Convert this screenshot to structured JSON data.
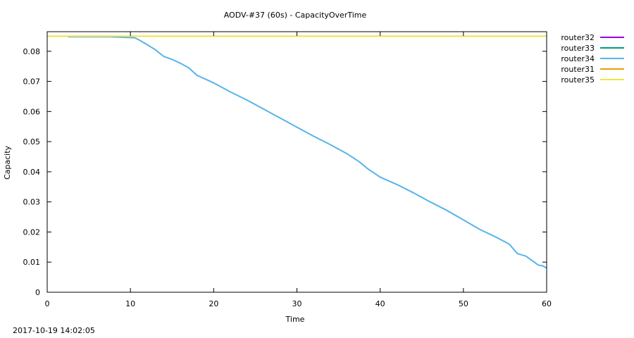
{
  "timestamp": "2017-10-19 14:02:05",
  "chart_data": {
    "type": "line",
    "title": "AODV-#37 (60s) - CapacityOverTime",
    "xlabel": "Time",
    "ylabel": "Capacity",
    "xlim": [
      0,
      60
    ],
    "ylim": [
      0,
      0.0865
    ],
    "xticks": [
      {
        "value": 0,
        "label": "0"
      },
      {
        "value": 10,
        "label": "10"
      },
      {
        "value": 20,
        "label": "20"
      },
      {
        "value": 30,
        "label": "30"
      },
      {
        "value": 40,
        "label": "40"
      },
      {
        "value": 50,
        "label": "50"
      },
      {
        "value": 60,
        "label": "60"
      }
    ],
    "yticks": [
      {
        "value": 0,
        "label": "0"
      },
      {
        "value": 0.01,
        "label": "0.01"
      },
      {
        "value": 0.02,
        "label": "0.02"
      },
      {
        "value": 0.03,
        "label": "0.03"
      },
      {
        "value": 0.04,
        "label": "0.04"
      },
      {
        "value": 0.05,
        "label": "0.05"
      },
      {
        "value": 0.06,
        "label": "0.06"
      },
      {
        "value": 0.07,
        "label": "0.07"
      },
      {
        "value": 0.08,
        "label": "0.08"
      }
    ],
    "grid": false,
    "legend_position": "outside-right",
    "series": [
      {
        "name": "router32",
        "color": "#9400d3",
        "x": [],
        "y": []
      },
      {
        "name": "router33",
        "color": "#009e73",
        "x": [],
        "y": []
      },
      {
        "name": "router34",
        "color": "#56b4e9",
        "x": [
          2.5,
          7.5,
          10.5,
          11.0,
          12.0,
          13.0,
          14.0,
          15.0,
          16.0,
          17.0,
          18.0,
          20.0,
          22.0,
          24.0,
          26.0,
          28.0,
          30.0,
          32.0,
          34.0,
          36.0,
          37.5,
          38.5,
          40.0,
          42.0,
          44.0,
          46.0,
          48.0,
          50.0,
          52.0,
          54.0,
          55.5,
          56.5,
          57.5,
          58.5,
          59.0,
          59.5,
          60.0
        ],
        "y": [
          0.0848,
          0.0848,
          0.0845,
          0.0838,
          0.0822,
          0.0805,
          0.0783,
          0.0773,
          0.076,
          0.0745,
          0.072,
          0.0695,
          0.0665,
          0.0638,
          0.0608,
          0.0578,
          0.0548,
          0.0518,
          0.049,
          0.046,
          0.0433,
          0.041,
          0.0382,
          0.0358,
          0.033,
          0.03,
          0.0272,
          0.024,
          0.0208,
          0.0182,
          0.016,
          0.0128,
          0.012,
          0.01,
          0.009,
          0.0088,
          0.008
        ]
      },
      {
        "name": "router31",
        "color": "#e69f00",
        "x": [],
        "y": []
      },
      {
        "name": "router35",
        "color": "#f0e442",
        "x": [
          0,
          60
        ],
        "y": [
          0.085,
          0.085
        ]
      }
    ]
  }
}
